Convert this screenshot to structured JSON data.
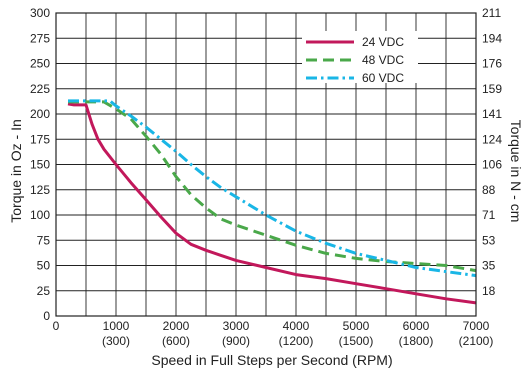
{
  "chart_data": {
    "type": "line",
    "xlabel": "Speed in Full Steps per Second (RPM)",
    "ylabel": "Torque in Oz - In",
    "ylabel_right": "Torque in N - cm",
    "xlim": [
      0,
      7000
    ],
    "ylim": [
      0,
      300
    ],
    "grid": true,
    "legend_position": "top-right",
    "x_ticks": [
      {
        "value": 0,
        "label": "0",
        "sublabel": ""
      },
      {
        "value": 1000,
        "label": "1000",
        "sublabel": "(300)"
      },
      {
        "value": 2000,
        "label": "2000",
        "sublabel": "(600)"
      },
      {
        "value": 3000,
        "label": "3000",
        "sublabel": "(900)"
      },
      {
        "value": 4000,
        "label": "4000",
        "sublabel": "(1200)"
      },
      {
        "value": 5000,
        "label": "5000",
        "sublabel": "(1500)"
      },
      {
        "value": 6000,
        "label": "6000",
        "sublabel": "(1800)"
      },
      {
        "value": 7000,
        "label": "7000",
        "sublabel": "(2100)"
      }
    ],
    "y_ticks": [
      {
        "value": 0,
        "label": "0"
      },
      {
        "value": 25,
        "label": "25"
      },
      {
        "value": 50,
        "label": "50"
      },
      {
        "value": 75,
        "label": "75"
      },
      {
        "value": 100,
        "label": "100"
      },
      {
        "value": 125,
        "label": "125"
      },
      {
        "value": 150,
        "label": "150"
      },
      {
        "value": 175,
        "label": "175"
      },
      {
        "value": 200,
        "label": "200"
      },
      {
        "value": 225,
        "label": "225"
      },
      {
        "value": 250,
        "label": "250"
      },
      {
        "value": 275,
        "label": "275"
      },
      {
        "value": 300,
        "label": "300"
      }
    ],
    "y_ticks_right": [
      {
        "value": 25,
        "label": "18"
      },
      {
        "value": 50,
        "label": "35"
      },
      {
        "value": 75,
        "label": "53"
      },
      {
        "value": 100,
        "label": "71"
      },
      {
        "value": 125,
        "label": "88"
      },
      {
        "value": 150,
        "label": "106"
      },
      {
        "value": 175,
        "label": "124"
      },
      {
        "value": 200,
        "label": "141"
      },
      {
        "value": 225,
        "label": "159"
      },
      {
        "value": 250,
        "label": "176"
      },
      {
        "value": 275,
        "label": "194"
      },
      {
        "value": 300,
        "label": "211"
      }
    ],
    "series": [
      {
        "name": "24 VDC",
        "color": "#c2185b",
        "dash": "solid",
        "x": [
          200,
          300,
          500,
          600,
          700,
          800,
          1000,
          1250,
          1500,
          1750,
          2000,
          2250,
          2500,
          2750,
          3000,
          3500,
          4000,
          4500,
          5000,
          5500,
          6000,
          6500,
          7000
        ],
        "y": [
          210,
          209,
          209,
          190,
          175,
          165,
          150,
          132,
          115,
          98,
          82,
          71,
          65,
          60,
          55,
          48,
          41,
          37,
          32,
          27,
          22,
          17,
          13
        ]
      },
      {
        "name": "48 VDC",
        "color": "#4aa84a",
        "dash": "dash",
        "x": [
          200,
          500,
          800,
          1000,
          1250,
          1500,
          1750,
          2000,
          2250,
          2500,
          2750,
          3000,
          3500,
          4000,
          4500,
          5000,
          5500,
          6000,
          6500,
          7000
        ],
        "y": [
          212,
          212,
          212,
          205,
          195,
          178,
          160,
          138,
          120,
          107,
          96,
          90,
          80,
          70,
          62,
          57,
          54,
          52,
          50,
          45
        ]
      },
      {
        "name": "60 VDC",
        "color": "#19b6e6",
        "dash": "dashdot",
        "x": [
          200,
          500,
          900,
          1000,
          1250,
          1500,
          1750,
          2000,
          2250,
          2500,
          2750,
          3000,
          3500,
          4000,
          4500,
          5000,
          5500,
          6000,
          6500,
          7000
        ],
        "y": [
          213,
          213,
          213,
          208,
          198,
          187,
          175,
          163,
          150,
          138,
          127,
          118,
          100,
          84,
          72,
          62,
          55,
          48,
          44,
          40
        ]
      }
    ]
  }
}
